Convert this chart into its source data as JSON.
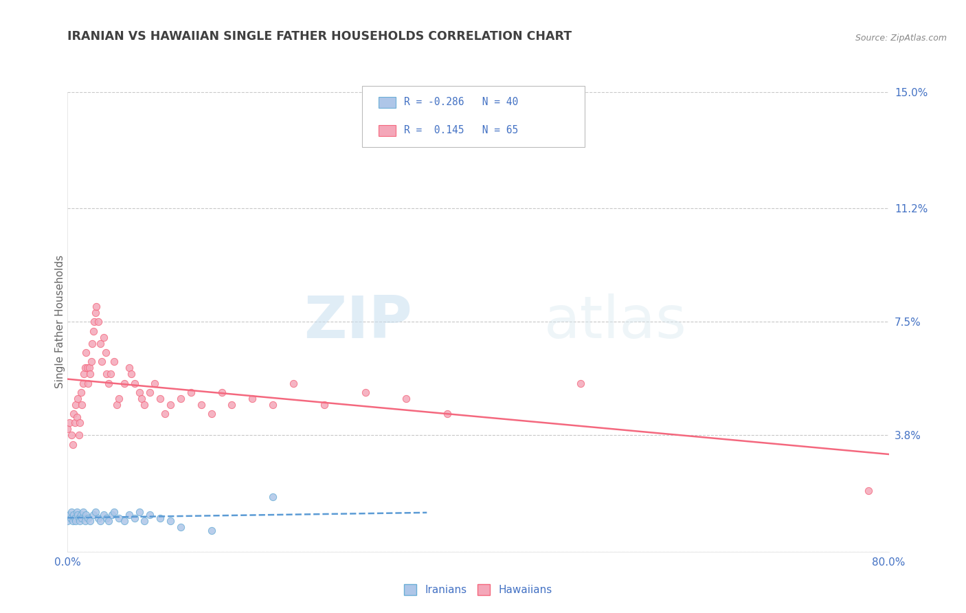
{
  "title": "IRANIAN VS HAWAIIAN SINGLE FATHER HOUSEHOLDS CORRELATION CHART",
  "source": "Source: ZipAtlas.com",
  "ylabel": "Single Father Households",
  "xlim": [
    0.0,
    0.8
  ],
  "ylim": [
    0.0,
    0.15
  ],
  "yticks": [
    0.0,
    0.038,
    0.075,
    0.112,
    0.15
  ],
  "ytick_labels": [
    "",
    "3.8%",
    "7.5%",
    "11.2%",
    "15.0%"
  ],
  "xtick_labels": [
    "0.0%",
    "80.0%"
  ],
  "xticks": [
    0.0,
    0.8
  ],
  "iranian_color": "#aec6e8",
  "hawaiian_color": "#f4a7b9",
  "iranian_edge_color": "#6baed6",
  "hawaiian_edge_color": "#f4687e",
  "iranian_line_color": "#5b9bd5",
  "hawaiian_line_color": "#f4687e",
  "legend_text_color": "#4472c4",
  "title_color": "#404040",
  "tick_label_color": "#4472c4",
  "background_color": "#ffffff",
  "grid_color": "#c8c8c8",
  "R_iranian": -0.286,
  "N_iranian": 40,
  "R_hawaiian": 0.145,
  "N_hawaiian": 65,
  "iranians_label": "Iranians",
  "hawaiians_label": "Hawaiians",
  "iranians_x": [
    0.0,
    0.002,
    0.003,
    0.004,
    0.005,
    0.006,
    0.007,
    0.008,
    0.009,
    0.01,
    0.011,
    0.012,
    0.013,
    0.014,
    0.015,
    0.017,
    0.018,
    0.02,
    0.022,
    0.025,
    0.027,
    0.03,
    0.032,
    0.035,
    0.038,
    0.04,
    0.043,
    0.045,
    0.05,
    0.055,
    0.06,
    0.065,
    0.07,
    0.075,
    0.08,
    0.09,
    0.1,
    0.11,
    0.14,
    0.2
  ],
  "iranians_y": [
    0.01,
    0.012,
    0.011,
    0.013,
    0.01,
    0.012,
    0.011,
    0.01,
    0.013,
    0.012,
    0.011,
    0.01,
    0.012,
    0.011,
    0.013,
    0.01,
    0.012,
    0.011,
    0.01,
    0.012,
    0.013,
    0.011,
    0.01,
    0.012,
    0.011,
    0.01,
    0.012,
    0.013,
    0.011,
    0.01,
    0.012,
    0.011,
    0.013,
    0.01,
    0.012,
    0.011,
    0.01,
    0.008,
    0.007,
    0.018
  ],
  "hawaiians_x": [
    0.0,
    0.002,
    0.004,
    0.005,
    0.006,
    0.007,
    0.008,
    0.009,
    0.01,
    0.011,
    0.012,
    0.013,
    0.014,
    0.015,
    0.016,
    0.017,
    0.018,
    0.019,
    0.02,
    0.021,
    0.022,
    0.023,
    0.024,
    0.025,
    0.026,
    0.027,
    0.028,
    0.03,
    0.032,
    0.033,
    0.035,
    0.037,
    0.038,
    0.04,
    0.042,
    0.045,
    0.048,
    0.05,
    0.055,
    0.06,
    0.062,
    0.065,
    0.07,
    0.072,
    0.075,
    0.08,
    0.085,
    0.09,
    0.095,
    0.1,
    0.11,
    0.12,
    0.13,
    0.14,
    0.15,
    0.16,
    0.18,
    0.2,
    0.22,
    0.25,
    0.29,
    0.33,
    0.37,
    0.5,
    0.78
  ],
  "hawaiians_y": [
    0.04,
    0.042,
    0.038,
    0.035,
    0.045,
    0.042,
    0.048,
    0.044,
    0.05,
    0.038,
    0.042,
    0.052,
    0.048,
    0.055,
    0.058,
    0.06,
    0.065,
    0.06,
    0.055,
    0.06,
    0.058,
    0.062,
    0.068,
    0.072,
    0.075,
    0.078,
    0.08,
    0.075,
    0.068,
    0.062,
    0.07,
    0.065,
    0.058,
    0.055,
    0.058,
    0.062,
    0.048,
    0.05,
    0.055,
    0.06,
    0.058,
    0.055,
    0.052,
    0.05,
    0.048,
    0.052,
    0.055,
    0.05,
    0.045,
    0.048,
    0.05,
    0.052,
    0.048,
    0.045,
    0.052,
    0.048,
    0.05,
    0.048,
    0.055,
    0.048,
    0.052,
    0.05,
    0.045,
    0.055,
    0.02
  ],
  "watermark_zip": "ZIP",
  "watermark_atlas": "atlas"
}
